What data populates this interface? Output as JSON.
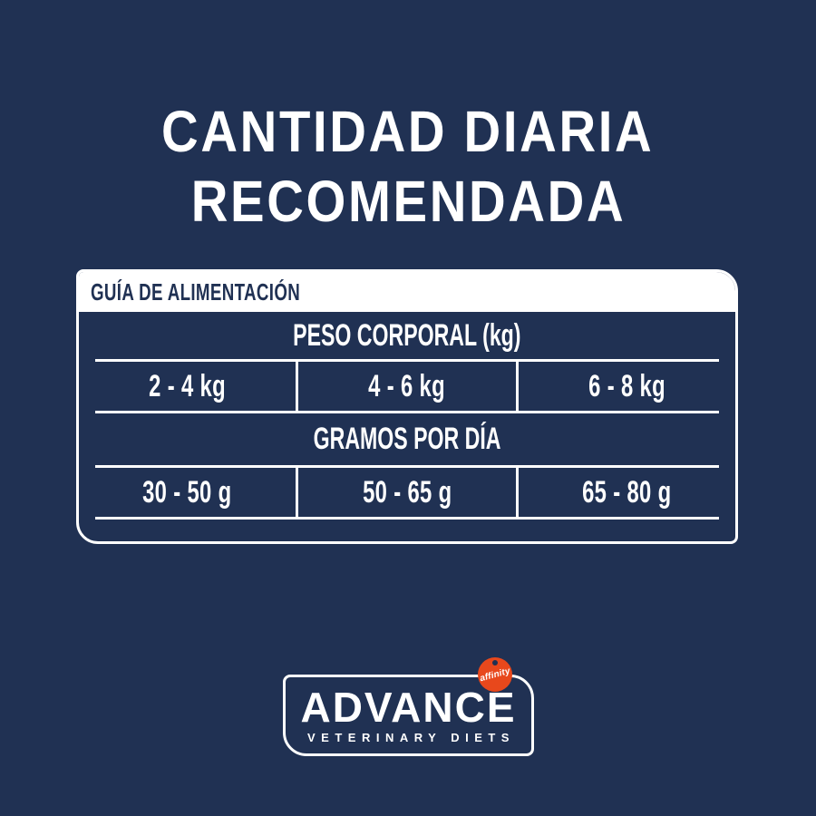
{
  "colors": {
    "background": "#203153",
    "text_light": "#FFFFFF",
    "card_header_bg": "#FFFFFF",
    "card_header_text": "#203153",
    "table_lines": "#FFFFFF",
    "badge": "#E8481C"
  },
  "title": {
    "line1": "CANTIDAD DIARIA",
    "line2": "RECOMENDADA"
  },
  "chart_data": {
    "type": "table",
    "title": "CANTIDAD DIARIA RECOMENDADA",
    "table_header": "GUÍA DE ALIMENTACIÓN",
    "columns": 3,
    "sections": [
      {
        "label": "PESO CORPORAL (kg)",
        "values": [
          "2 - 4 kg",
          "4 - 6 kg",
          "6 - 8 kg"
        ]
      },
      {
        "label": "GRAMOS POR DÍA",
        "values": [
          "30 - 50 g",
          "50 - 65 g",
          "65 - 80 g"
        ]
      }
    ]
  },
  "logo": {
    "brand": "ADVANCE",
    "subtitle": "VETERINARY DIETS",
    "badge_label": "affinity"
  }
}
